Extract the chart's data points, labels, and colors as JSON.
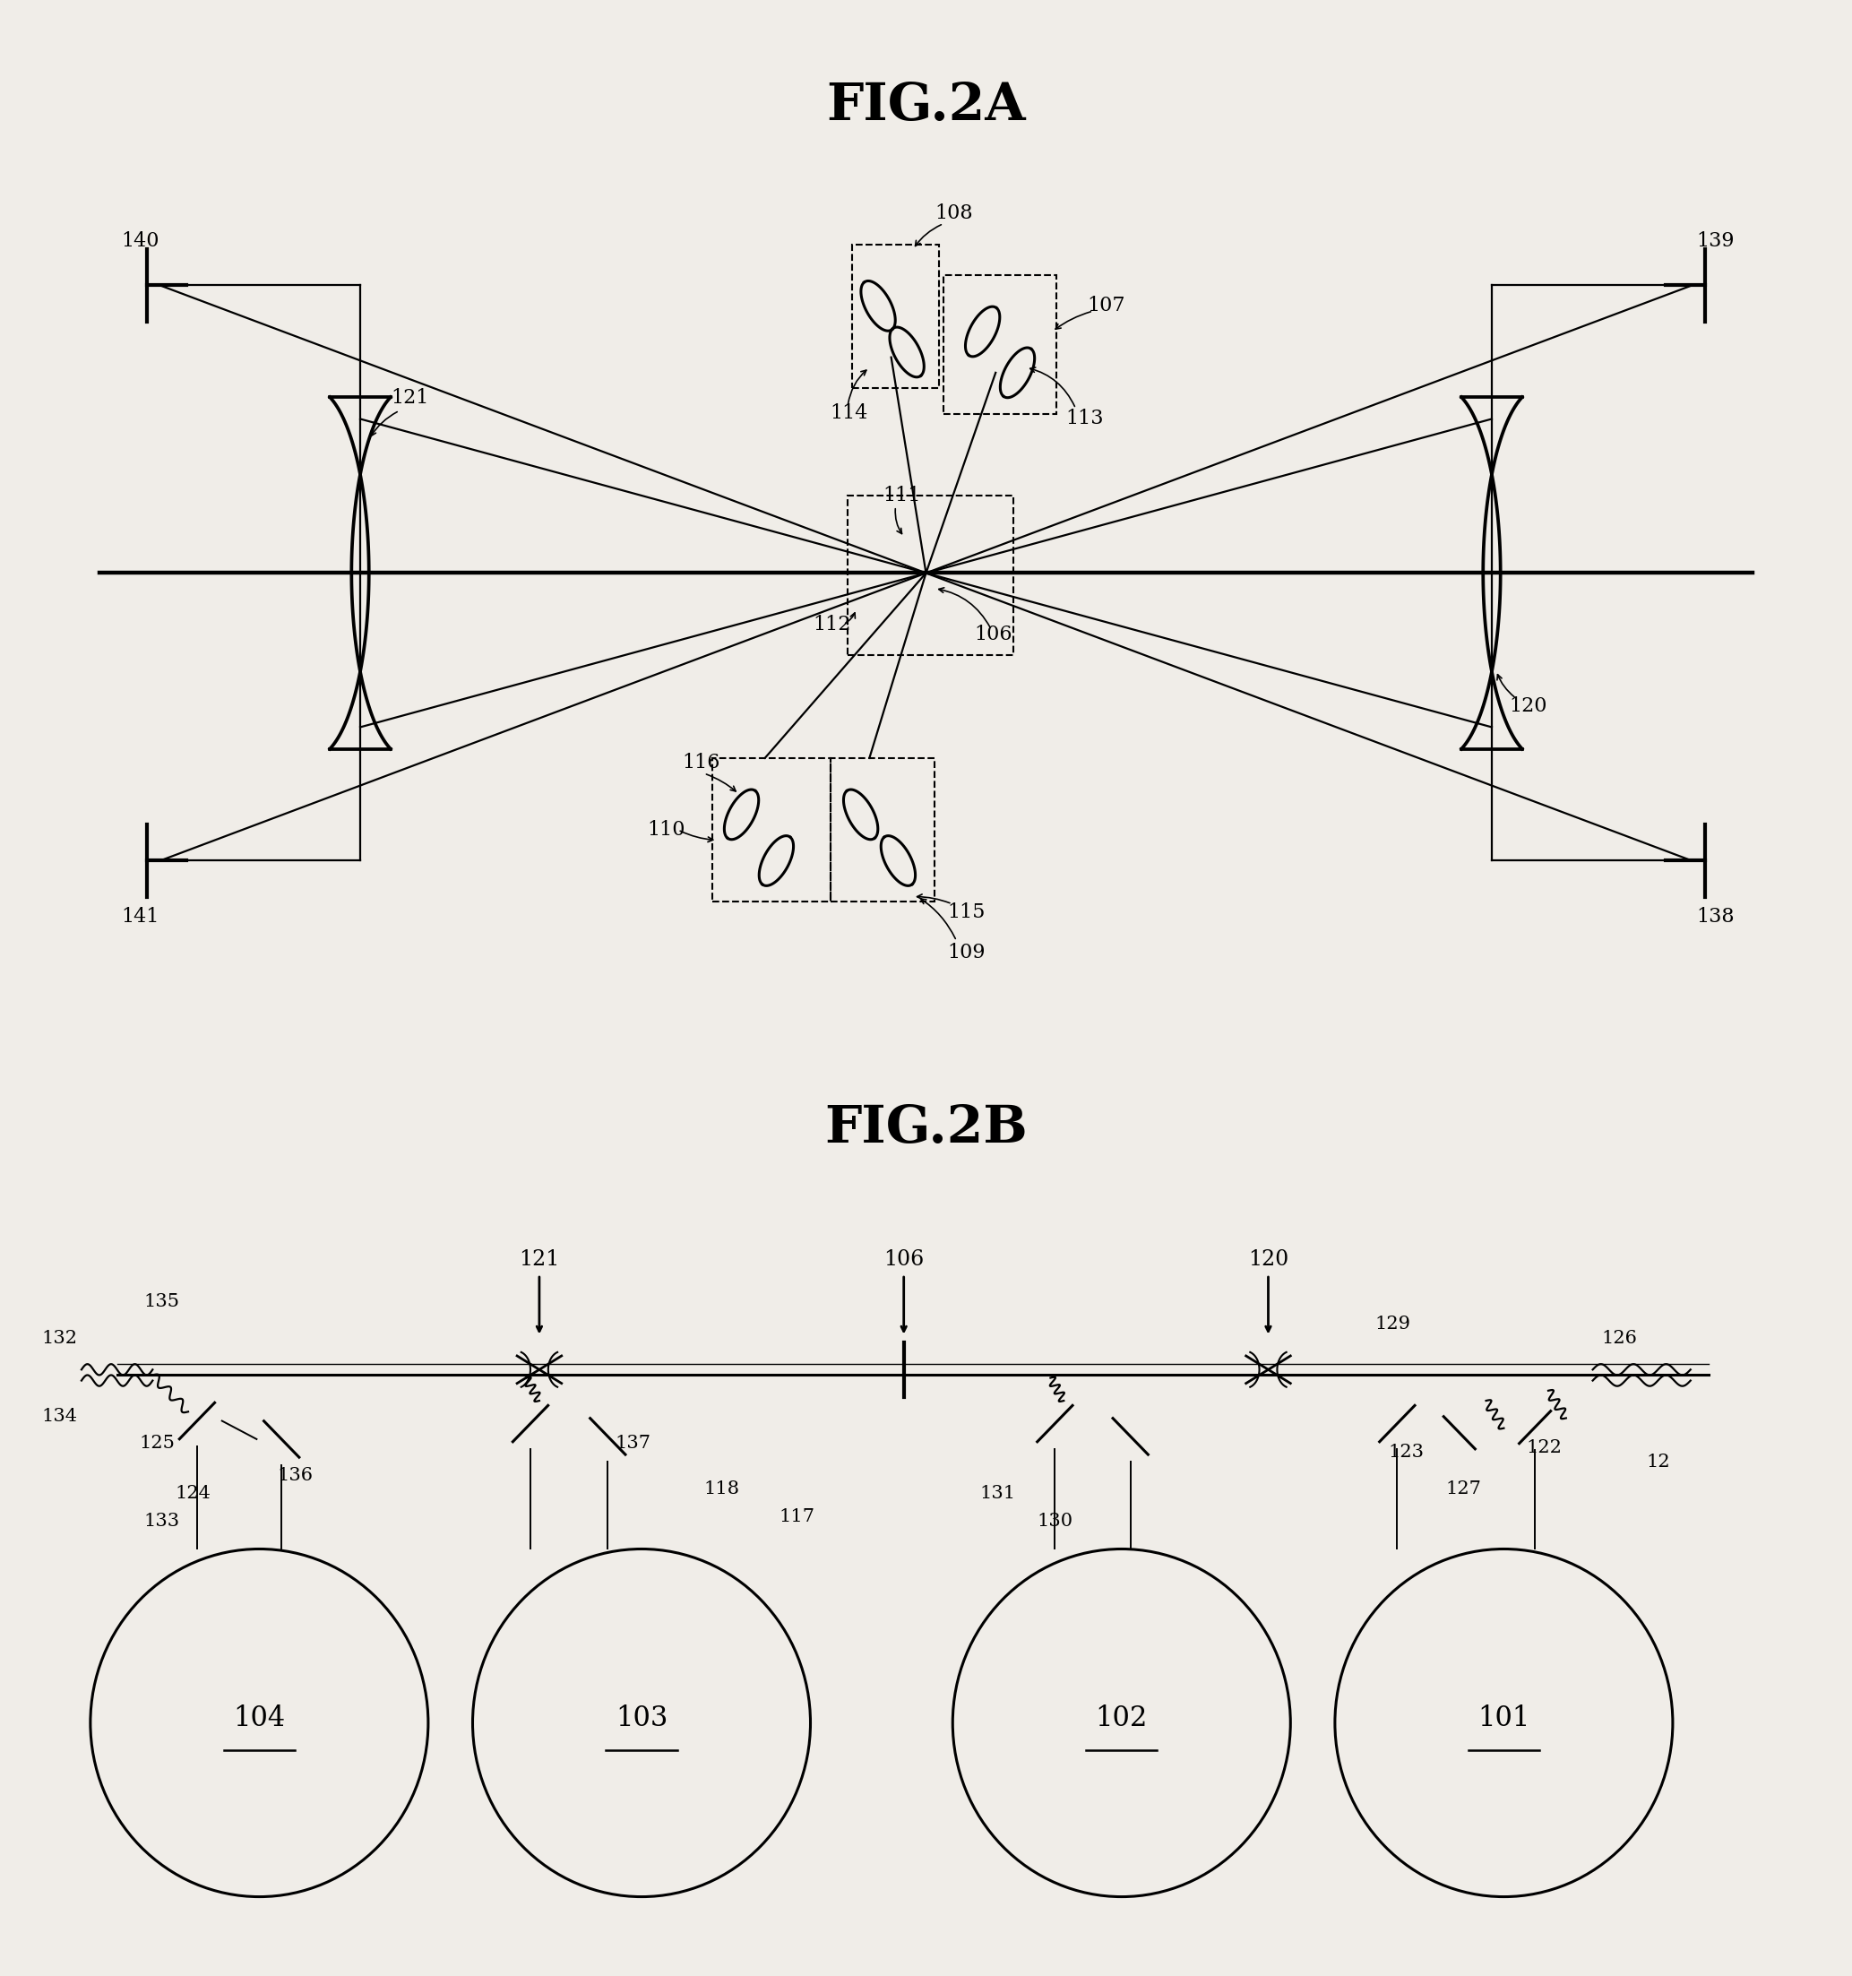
{
  "title_2a": "FIG.2A",
  "title_2b": "FIG.2B",
  "bg_color": "#f0ede8",
  "line_color": "#000000",
  "title_fontsize": 42,
  "label_fontsize": 18
}
